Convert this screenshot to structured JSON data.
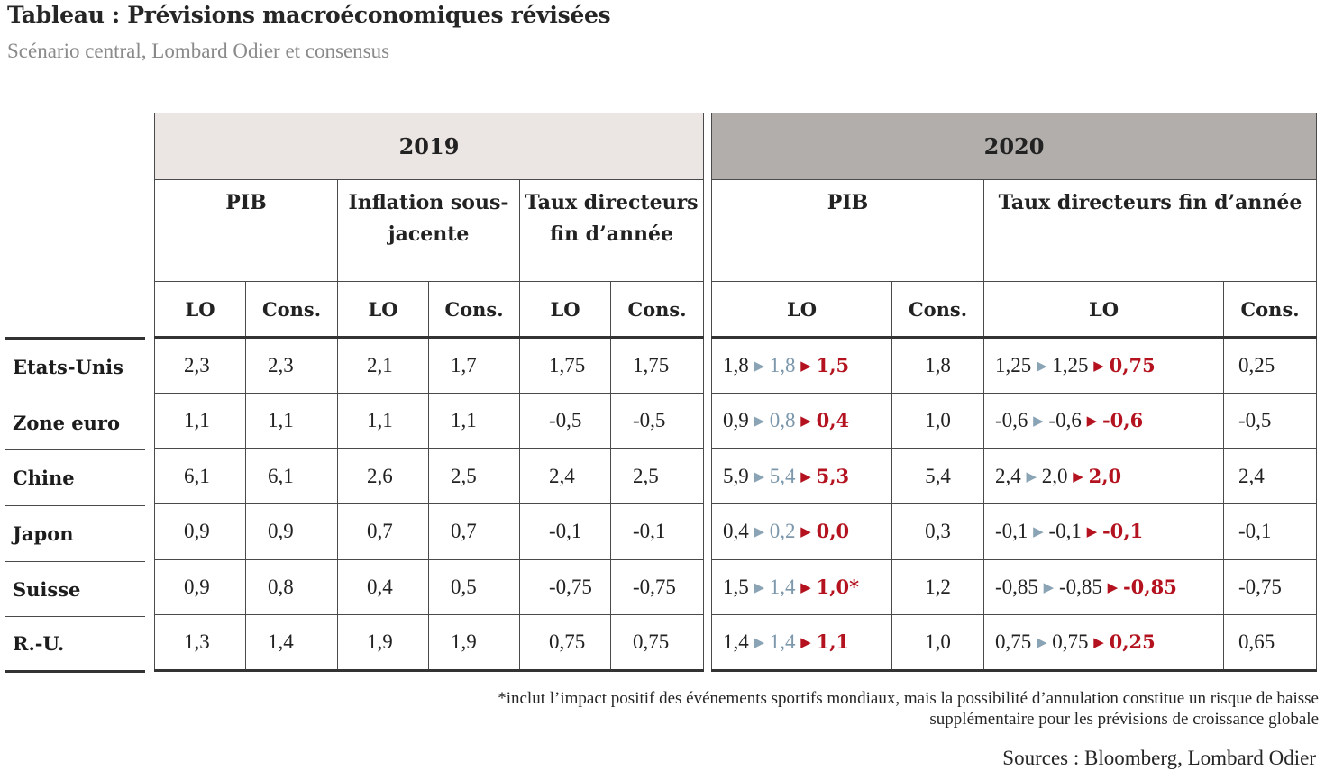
{
  "title": "Tableau : Prévisions macroéconomiques révisées",
  "subtitle": "Scénario central, Lombard Odier et consensus",
  "years": {
    "y2019": "2019",
    "y2020": "2020"
  },
  "headers_2019": [
    "PIB",
    "Inflation sous-jacente",
    "Taux directeurs fin d’année"
  ],
  "headers_2020": [
    "PIB",
    "Taux directeurs fin d’année"
  ],
  "sub": {
    "lo": "LO",
    "cons": "Cons."
  },
  "rows": [
    {
      "country": "Etats-Unis",
      "y2019": [
        "2,3",
        "2,3",
        "2,1",
        "1,7",
        "1,75",
        "1,75"
      ],
      "pib2020": {
        "a": "1,8",
        "b": "1,8",
        "c": "1,5"
      },
      "pib2020_cons": "1,8",
      "taux2020": {
        "a": "1,25",
        "b": "1,25",
        "c": "0,75"
      },
      "taux2020_cons": "0,25"
    },
    {
      "country": "Zone euro",
      "y2019": [
        "1,1",
        "1,1",
        "1,1",
        "1,1",
        "-0,5",
        "-0,5"
      ],
      "pib2020": {
        "a": "0,9",
        "b": "0,8",
        "c": "0,4"
      },
      "pib2020_cons": "1,0",
      "taux2020": {
        "a": "-0,6",
        "b": "-0,6",
        "c": "-0,6"
      },
      "taux2020_cons": "-0,5"
    },
    {
      "country": "Chine",
      "y2019": [
        "6,1",
        "6,1",
        "2,6",
        "2,5",
        "2,4",
        "2,5"
      ],
      "pib2020": {
        "a": "5,9",
        "b": "5,4",
        "c": "5,3"
      },
      "pib2020_cons": "5,4",
      "taux2020": {
        "a": "2,4",
        "b": "2,0",
        "c": "2,0"
      },
      "taux2020_cons": "2,4"
    },
    {
      "country": "Japon",
      "y2019": [
        "0,9",
        "0,9",
        "0,7",
        "0,7",
        "-0,1",
        "-0,1"
      ],
      "pib2020": {
        "a": "0,4",
        "b": "0,2",
        "c": "0,0"
      },
      "pib2020_cons": "0,3",
      "taux2020": {
        "a": "-0,1",
        "b": "-0,1",
        "c": "-0,1"
      },
      "taux2020_cons": "-0,1"
    },
    {
      "country": "Suisse",
      "y2019": [
        "0,9",
        "0,8",
        "0,4",
        "0,5",
        "-0,75",
        "-0,75"
      ],
      "pib2020": {
        "a": "1,5",
        "b": "1,4",
        "c": "1,0*"
      },
      "pib2020_cons": "1,2",
      "taux2020": {
        "a": "-0,85",
        "b": "-0,85",
        "c": "-0,85"
      },
      "taux2020_cons": "-0,75"
    },
    {
      "country": "R.-U.",
      "y2019": [
        "1,3",
        "1,4",
        "1,9",
        "1,9",
        "0,75",
        "0,75"
      ],
      "pib2020": {
        "a": "1,4",
        "b": "1,4",
        "c": "1,1"
      },
      "pib2020_cons": "1,0",
      "taux2020": {
        "a": "0,75",
        "b": "0,75",
        "c": "0,25"
      },
      "taux2020_cons": "0,65"
    }
  ],
  "colors": {
    "revised": "#b3121e",
    "intermediate": "#7d98ac",
    "year2019_bg": "#ebe6e3",
    "year2020_bg": "#b1aeab"
  },
  "arrow_glyph": "▶",
  "footnote_line1": "*inclut l’impact positif des événements sportifs mondiaux, mais la possibilité d’annulation constitue un risque de baisse",
  "footnote_line2": "supplémentaire pour les prévisions de croissance globale",
  "sources": "Sources : Bloomberg, Lombard Odier"
}
